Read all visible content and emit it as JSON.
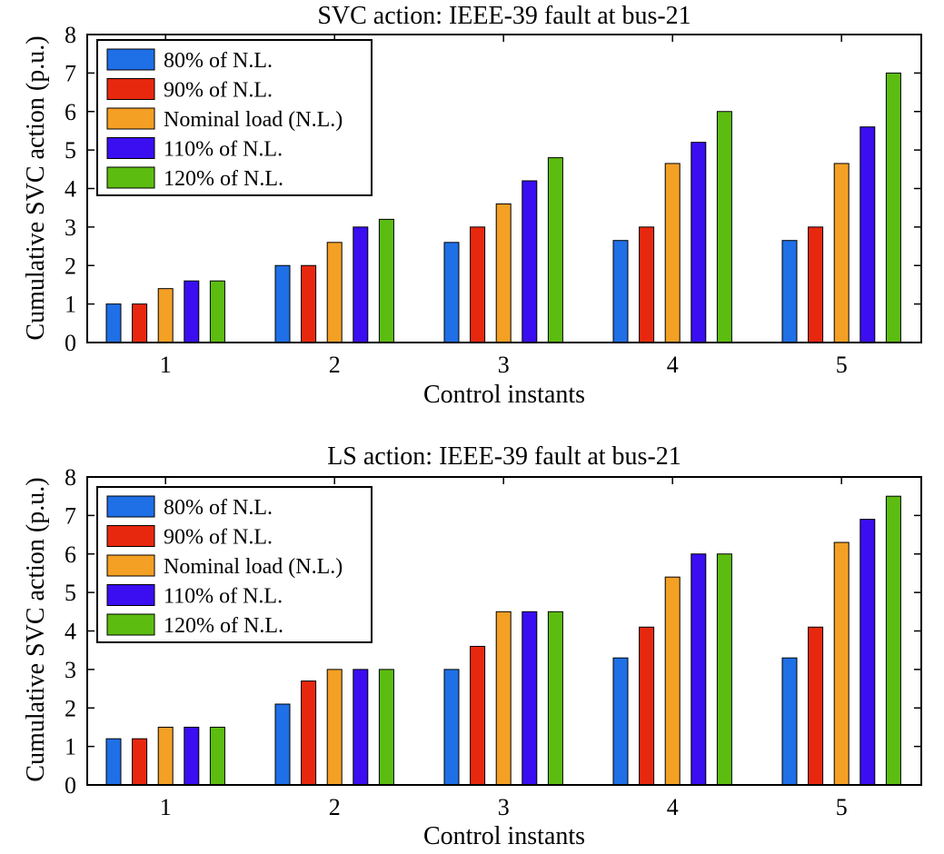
{
  "chart_data": [
    {
      "type": "bar",
      "title": "SVC action: IEEE-39 fault at bus-21",
      "xlabel": "Control instants",
      "ylabel": "Cumulative SVC action (p.u.)",
      "categories": [
        "1",
        "2",
        "3",
        "4",
        "5"
      ],
      "ylim": [
        0,
        8
      ],
      "yticks": [
        "0",
        "1",
        "2",
        "3",
        "4",
        "5",
        "6",
        "7",
        "8"
      ],
      "legend_position": "top-left",
      "grid": false,
      "series": [
        {
          "name": "80% of N.L.",
          "color": "#1f6fe6",
          "values": [
            1.0,
            2.0,
            2.6,
            2.65,
            2.65
          ]
        },
        {
          "name": "90% of N.L.",
          "color": "#e8280e",
          "values": [
            1.0,
            2.0,
            3.0,
            3.0,
            3.0
          ]
        },
        {
          "name": "Nominal load (N.L.)",
          "color": "#f4a024",
          "values": [
            1.4,
            2.6,
            3.6,
            4.65,
            4.65
          ]
        },
        {
          "name": "110% of N.L.",
          "color": "#3a0ef0",
          "values": [
            1.6,
            3.0,
            4.2,
            5.2,
            5.6
          ]
        },
        {
          "name": "120% of N.L.",
          "color": "#5cbd10",
          "values": [
            1.6,
            3.2,
            4.8,
            6.0,
            7.0
          ]
        }
      ]
    },
    {
      "type": "bar",
      "title": "LS action: IEEE-39 fault at bus-21",
      "xlabel": "Control instants",
      "ylabel": "Cumulative SVC action (p.u.)",
      "categories": [
        "1",
        "2",
        "3",
        "4",
        "5"
      ],
      "ylim": [
        0,
        8
      ],
      "yticks": [
        "0",
        "1",
        "2",
        "3",
        "4",
        "5",
        "6",
        "7",
        "8"
      ],
      "legend_position": "top-left",
      "grid": false,
      "series": [
        {
          "name": "80% of N.L.",
          "color": "#1f6fe6",
          "values": [
            1.2,
            2.1,
            3.0,
            3.3,
            3.3
          ]
        },
        {
          "name": "90% of N.L.",
          "color": "#e8280e",
          "values": [
            1.2,
            2.7,
            3.6,
            4.1,
            4.1
          ]
        },
        {
          "name": "Nominal load (N.L.)",
          "color": "#f4a024",
          "values": [
            1.5,
            3.0,
            4.5,
            5.4,
            6.3
          ]
        },
        {
          "name": "110% of N.L.",
          "color": "#3a0ef0",
          "values": [
            1.5,
            3.0,
            4.5,
            6.0,
            6.9
          ]
        },
        {
          "name": "120% of N.L.",
          "color": "#5cbd10",
          "values": [
            1.5,
            3.0,
            4.5,
            6.0,
            7.5
          ]
        }
      ]
    }
  ]
}
